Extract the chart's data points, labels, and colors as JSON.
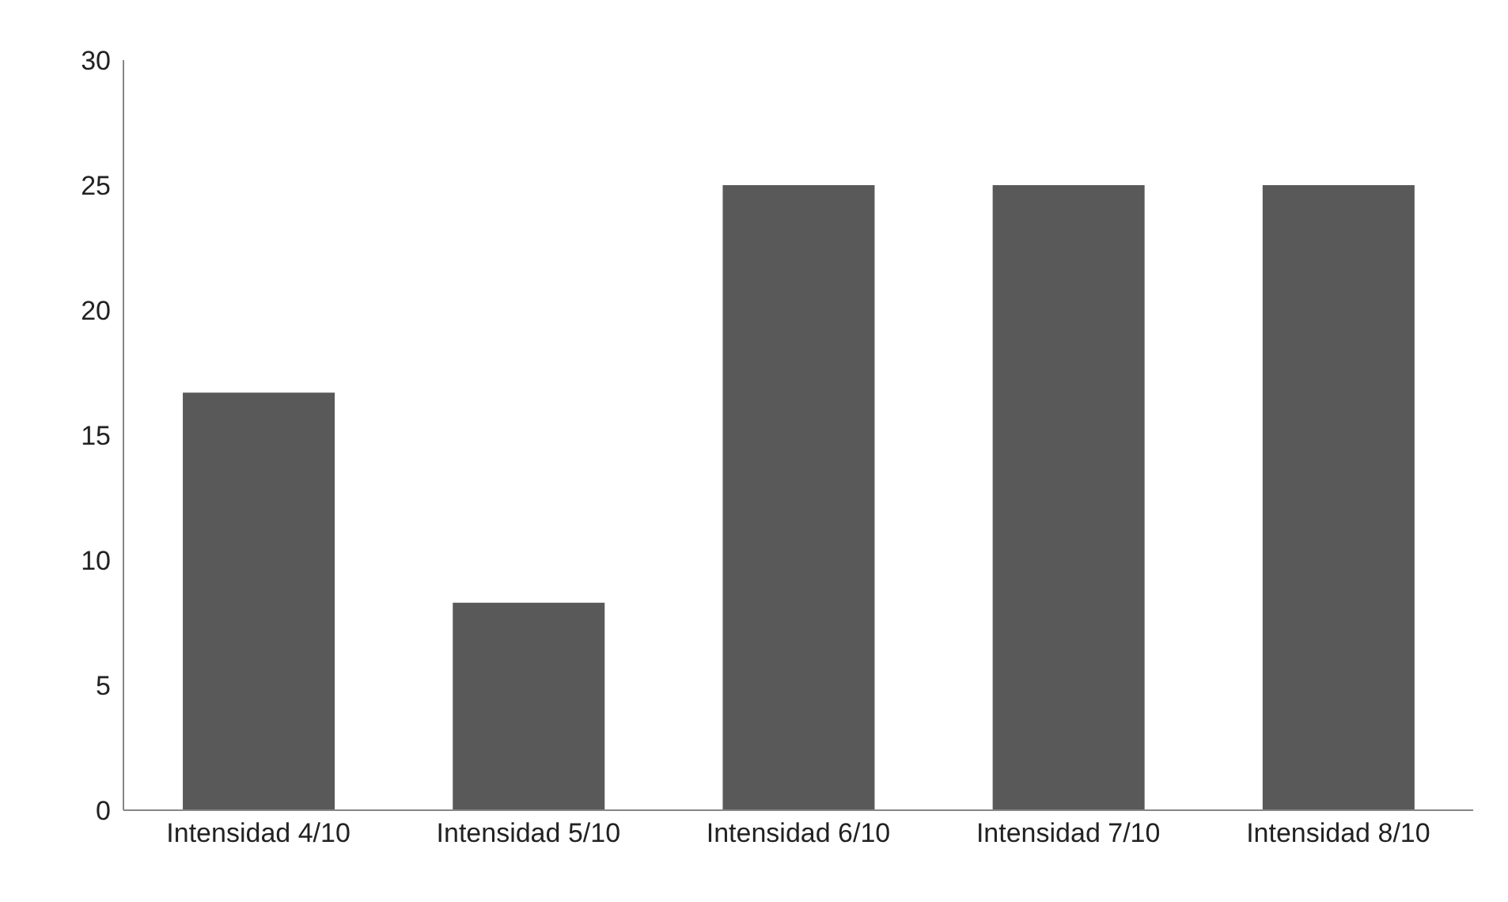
{
  "chart_data": {
    "type": "bar",
    "categories": [
      "Intensidad 4/10",
      "Intensidad 5/10",
      "Intensidad 6/10",
      "Intensidad 7/10",
      "Intensidad 8/10"
    ],
    "values": [
      16.7,
      8.3,
      25,
      25,
      25
    ],
    "color": "#595959",
    "ylim": [
      0,
      30
    ],
    "yticks": [
      0,
      5,
      10,
      15,
      20,
      25,
      30
    ],
    "grid": false,
    "legend": false
  }
}
